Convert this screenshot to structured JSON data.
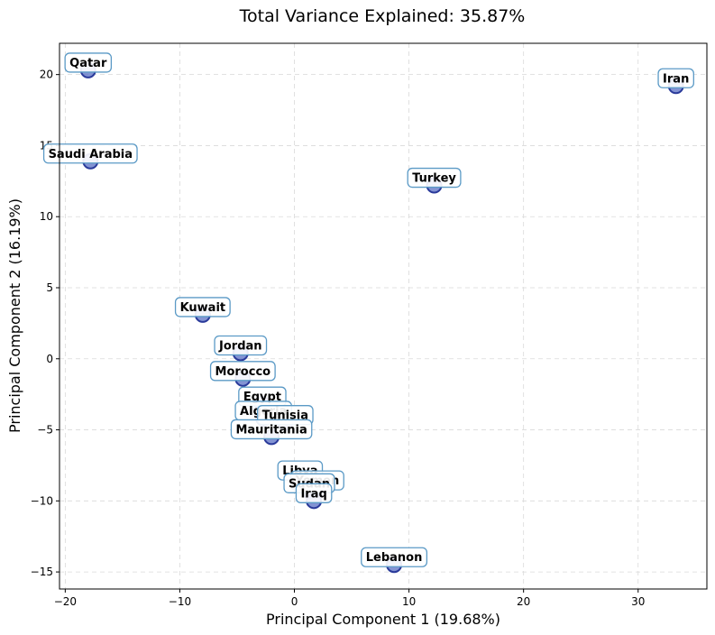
{
  "chart_data": {
    "type": "scatter",
    "title": "Total Variance Explained: 35.87%",
    "xlabel": "Principal Component 1 (19.68%)",
    "ylabel": "Principal Component 2 (16.19%)",
    "xlim": [
      -20.5,
      36
    ],
    "ylim": [
      -16.2,
      22.2
    ],
    "xticks": [
      -20,
      -10,
      0,
      10,
      20,
      30
    ],
    "yticks": [
      -15,
      -10,
      -5,
      0,
      5,
      10,
      15,
      20
    ],
    "grid": true,
    "points": [
      {
        "label": "Qatar",
        "x": -18.0,
        "y": 20.3
      },
      {
        "label": "Iran",
        "x": 33.3,
        "y": 19.2
      },
      {
        "label": "Saudi Arabia",
        "x": -17.8,
        "y": 13.9
      },
      {
        "label": "Turkey",
        "x": 12.2,
        "y": 12.2
      },
      {
        "label": "Kuwait",
        "x": -8.0,
        "y": 3.1
      },
      {
        "label": "Jordan",
        "x": -4.7,
        "y": 0.4
      },
      {
        "label": "Morocco",
        "x": -4.5,
        "y": -1.4
      },
      {
        "label": "Egypt",
        "x": -2.8,
        "y": -3.2
      },
      {
        "label": "Algeria",
        "x": -2.7,
        "y": -4.2
      },
      {
        "label": "Tunisia",
        "x": -0.8,
        "y": -4.5
      },
      {
        "label": "Mauritania",
        "x": -2.0,
        "y": -5.5
      },
      {
        "label": "Libya",
        "x": 0.5,
        "y": -8.4
      },
      {
        "label": "Yemen",
        "x": 2.0,
        "y": -9.1
      },
      {
        "label": "Sudan",
        "x": 1.3,
        "y": -9.3
      },
      {
        "label": "Iraq",
        "x": 1.7,
        "y": -10.0
      },
      {
        "label": "Lebanon",
        "x": 8.7,
        "y": -14.5
      }
    ]
  }
}
